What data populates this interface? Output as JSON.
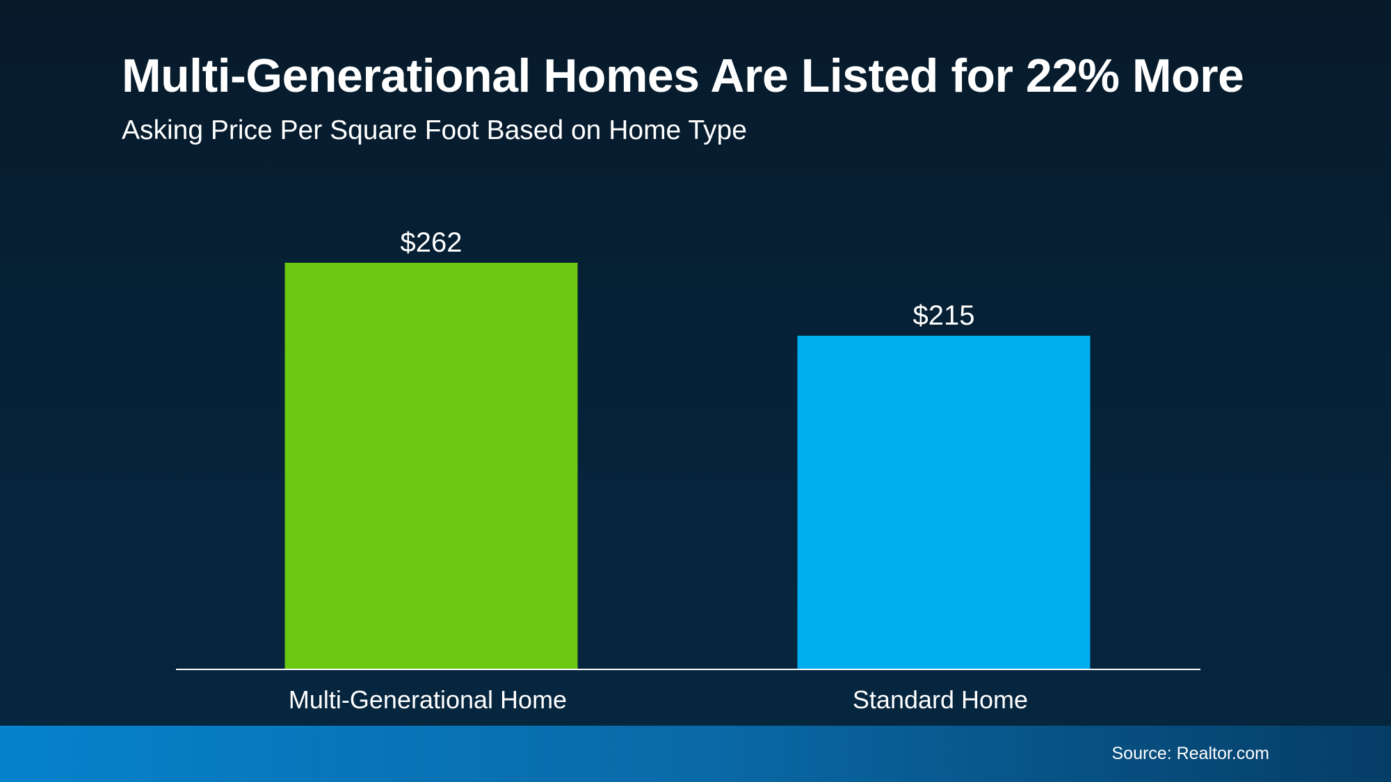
{
  "chart_data": {
    "type": "bar",
    "title": "Multi-Generational Homes Are Listed for 22% More",
    "subtitle": "Asking Price Per Square Foot Based on Home Type",
    "categories": [
      "Multi-Generational Home",
      "Standard Home"
    ],
    "values": [
      262,
      215
    ],
    "value_labels": [
      "$262",
      "$215"
    ],
    "colors": [
      "#6cc911",
      "#00adee"
    ],
    "ylim": [
      0,
      262
    ],
    "grid": false,
    "legend": "none"
  },
  "footer": {
    "source": "Source: Realtor.com"
  }
}
